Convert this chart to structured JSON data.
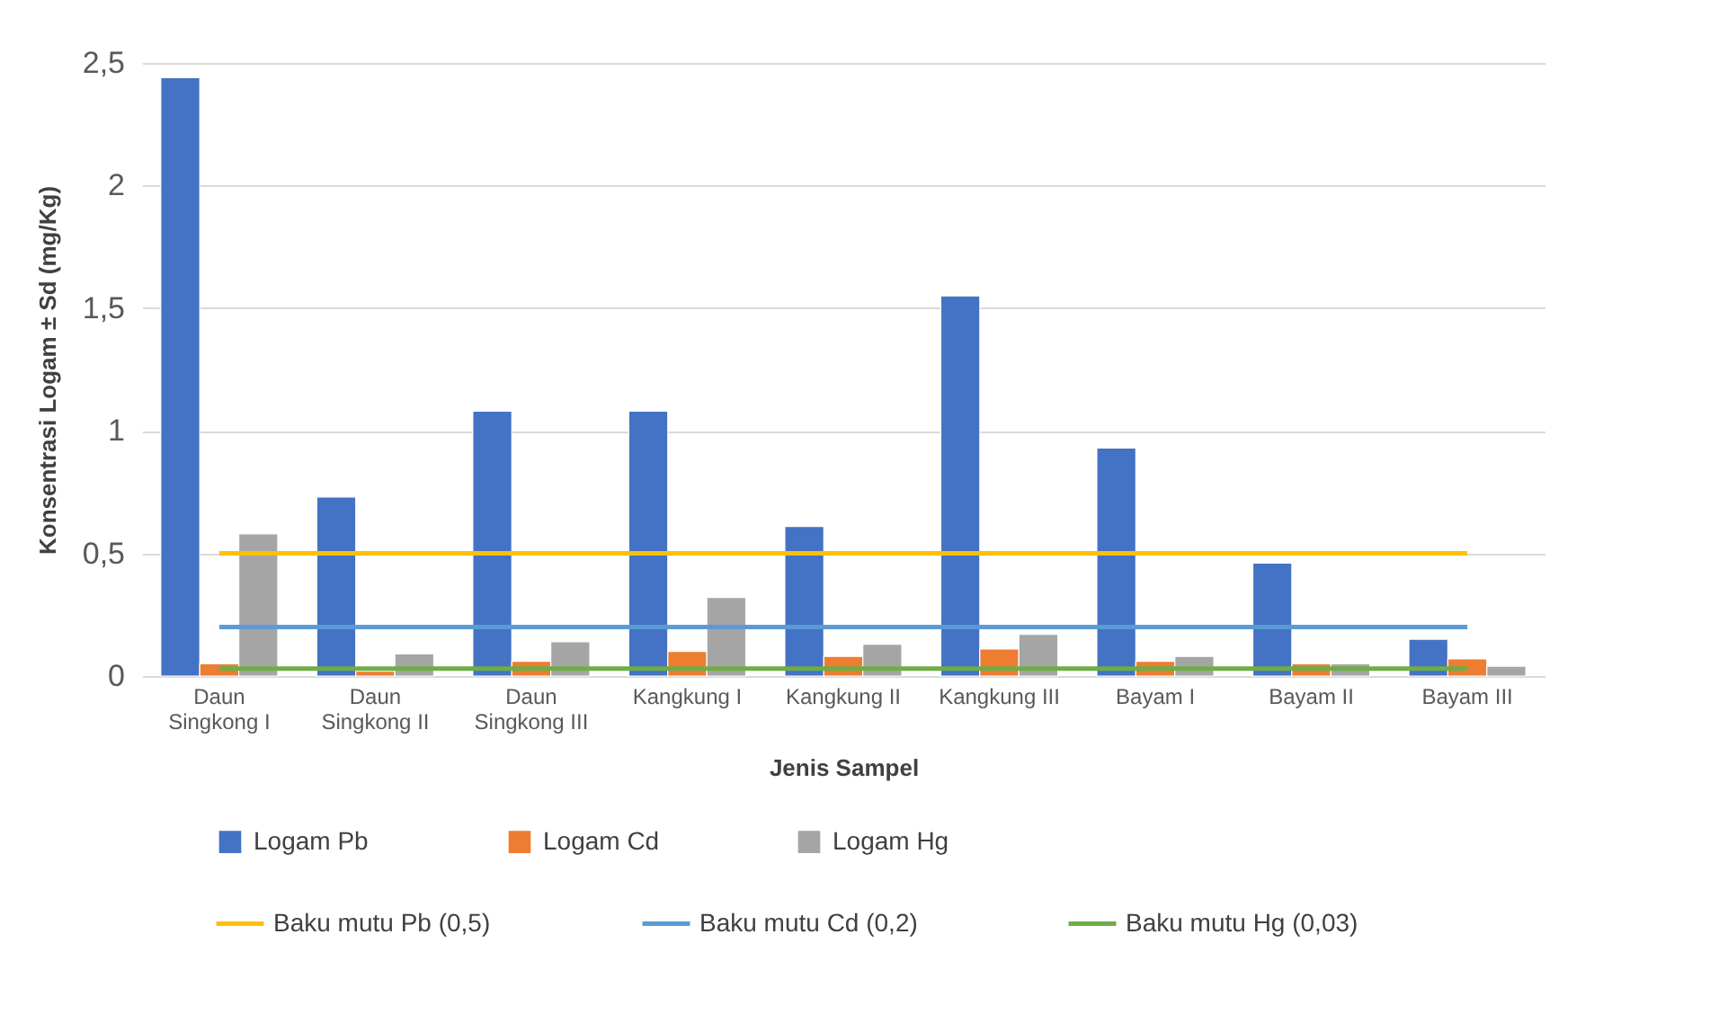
{
  "chart_data": {
    "type": "bar",
    "xlabel": "Jenis Sampel",
    "ylabel": "Konsentrasi Logam ± Sd (mg/Kg)",
    "categories": [
      "Daun Singkong I",
      "Daun Singkong II",
      "Daun Singkong III",
      "Kangkung I",
      "Kangkung II",
      "Kangkung III",
      "Bayam I",
      "Bayam II",
      "Bayam III"
    ],
    "ylim": [
      0,
      2.5
    ],
    "yticks": [
      0,
      {
        "value": 0.5,
        "label": "0,5"
      },
      1,
      {
        "value": 1.5,
        "label": "1,5"
      },
      2,
      {
        "value": 2.5,
        "label": "2,5"
      }
    ],
    "grid": "y",
    "legend": "bottom",
    "series": [
      {
        "name": "Logam Pb",
        "color": "#4472c4",
        "values": [
          2.44,
          0.73,
          1.08,
          1.08,
          0.61,
          1.55,
          0.93,
          0.46,
          0.15
        ]
      },
      {
        "name": "Logam Cd",
        "color": "#ed7d31",
        "values": [
          0.05,
          0.02,
          0.06,
          0.1,
          0.08,
          0.11,
          0.06,
          0.05,
          0.07
        ]
      },
      {
        "name": "Logam Hg",
        "color": "#a5a5a5",
        "values": [
          0.58,
          0.09,
          0.14,
          0.32,
          0.13,
          0.17,
          0.08,
          0.05,
          0.04
        ]
      },
      {
        "name": "Baku mutu Pb (0,5)",
        "type": "line",
        "color": "#ffc000",
        "values": [
          0.5,
          0.5,
          0.5,
          0.5,
          0.5,
          0.5,
          0.5,
          0.5,
          0.5
        ]
      },
      {
        "name": "Baku mutu Cd (0,2)",
        "type": "line",
        "color": "#5b9bd5",
        "values": [
          0.2,
          0.2,
          0.2,
          0.2,
          0.2,
          0.2,
          0.2,
          0.2,
          0.2
        ]
      },
      {
        "name": "Baku mutu Hg (0,03)",
        "type": "line",
        "color": "#70ad47",
        "values": [
          0.03,
          0.03,
          0.03,
          0.03,
          0.03,
          0.03,
          0.03,
          0.03,
          0.03
        ]
      }
    ]
  }
}
